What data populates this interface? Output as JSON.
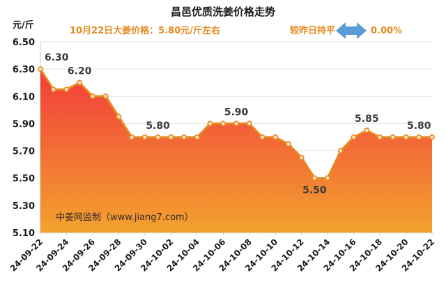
{
  "chart_data": {
    "type": "area",
    "title": "昌邑优质洗姜价格走势",
    "unit": "元/斤",
    "subtitle_left": "10月22日大姜价格：5.80元/斤左右",
    "subtitle_right_label": "较昨日持平",
    "subtitle_right_value": "0.00%",
    "watermark": "中姜网监制（www.jiang7.com）",
    "ylim": [
      5.1,
      6.5
    ],
    "yticks": [
      "6.50",
      "6.30",
      "6.10",
      "5.90",
      "5.70",
      "5.50",
      "5.30",
      "5.10"
    ],
    "xtick_labels": [
      "24-09-22",
      "24-09-24",
      "24-09-26",
      "24-09-28",
      "24-09-30",
      "24-10-02",
      "24-10-04",
      "24-10-06",
      "24-10-08",
      "24-10-10",
      "24-10-12",
      "24-10-14",
      "24-10-16",
      "24-10-18",
      "24-10-20",
      "24-10-22"
    ],
    "values": [
      6.3,
      6.15,
      6.15,
      6.2,
      6.1,
      6.1,
      5.95,
      5.8,
      5.8,
      5.8,
      5.8,
      5.8,
      5.8,
      5.9,
      5.9,
      5.9,
      5.9,
      5.8,
      5.8,
      5.75,
      5.65,
      5.5,
      5.5,
      5.7,
      5.8,
      5.85,
      5.8,
      5.8,
      5.8,
      5.8,
      5.8
    ],
    "data_labels": [
      {
        "index": 0,
        "text": "6.30"
      },
      {
        "index": 3,
        "text": "6.20"
      },
      {
        "index": 9,
        "text": "5.80"
      },
      {
        "index": 15,
        "text": "5.90"
      },
      {
        "index": 21,
        "text": "5.50"
      },
      {
        "index": 25,
        "text": "5.85"
      },
      {
        "index": 29,
        "text": "5.80"
      }
    ],
    "colors": {
      "line": "#e8891f",
      "marker_fill": "#fbe3c4",
      "area_top": "#f23b3b",
      "area_bottom": "#f3a22f",
      "arrow": "#5b9bd5",
      "subtitle": "#e8891f"
    },
    "grid": true
  }
}
